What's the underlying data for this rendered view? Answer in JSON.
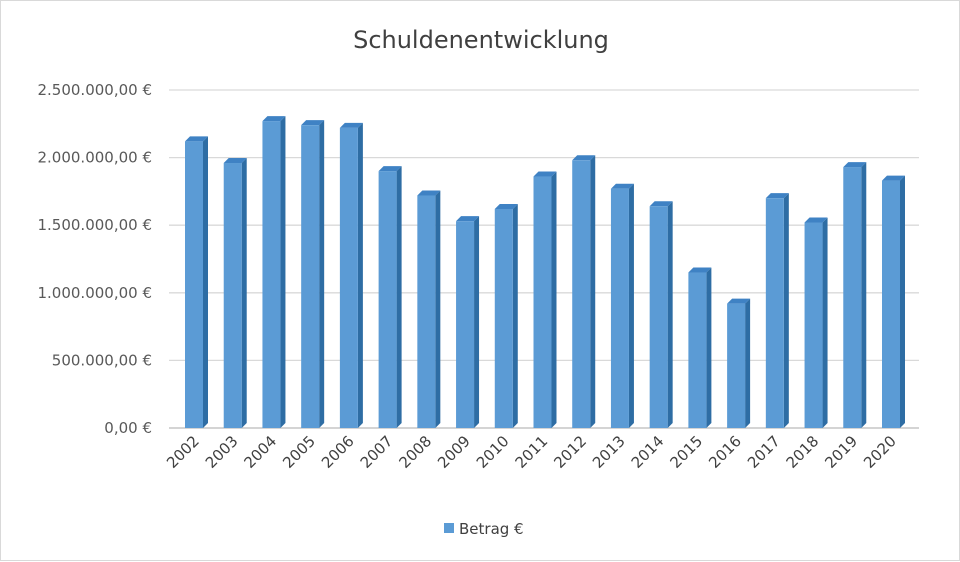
{
  "chart_data": {
    "type": "bar",
    "title": "Schuldenentwicklung",
    "categories": [
      "2002",
      "2003",
      "2004",
      "2005",
      "2006",
      "2007",
      "2008",
      "2009",
      "2010",
      "2011",
      "2012",
      "2013",
      "2014",
      "2015",
      "2016",
      "2017",
      "2018",
      "2019",
      "2020"
    ],
    "series": [
      {
        "name": "Betrag €",
        "values": [
          2120000,
          1960000,
          2270000,
          2240000,
          2220000,
          1900000,
          1720000,
          1530000,
          1620000,
          1860000,
          1980000,
          1770000,
          1640000,
          1150000,
          920000,
          1700000,
          1520000,
          1930000,
          1830000
        ],
        "color": "#5b9bd5"
      }
    ],
    "y_ticks": [
      "0,00 €",
      "500.000,00 €",
      "1.000.000,00 €",
      "1.500.000,00 €",
      "2.000.000,00 €",
      "2.500.000,00 €"
    ],
    "ylim": [
      0,
      2500000
    ],
    "grid": true,
    "legend": "bottom",
    "style": "3d-column"
  }
}
